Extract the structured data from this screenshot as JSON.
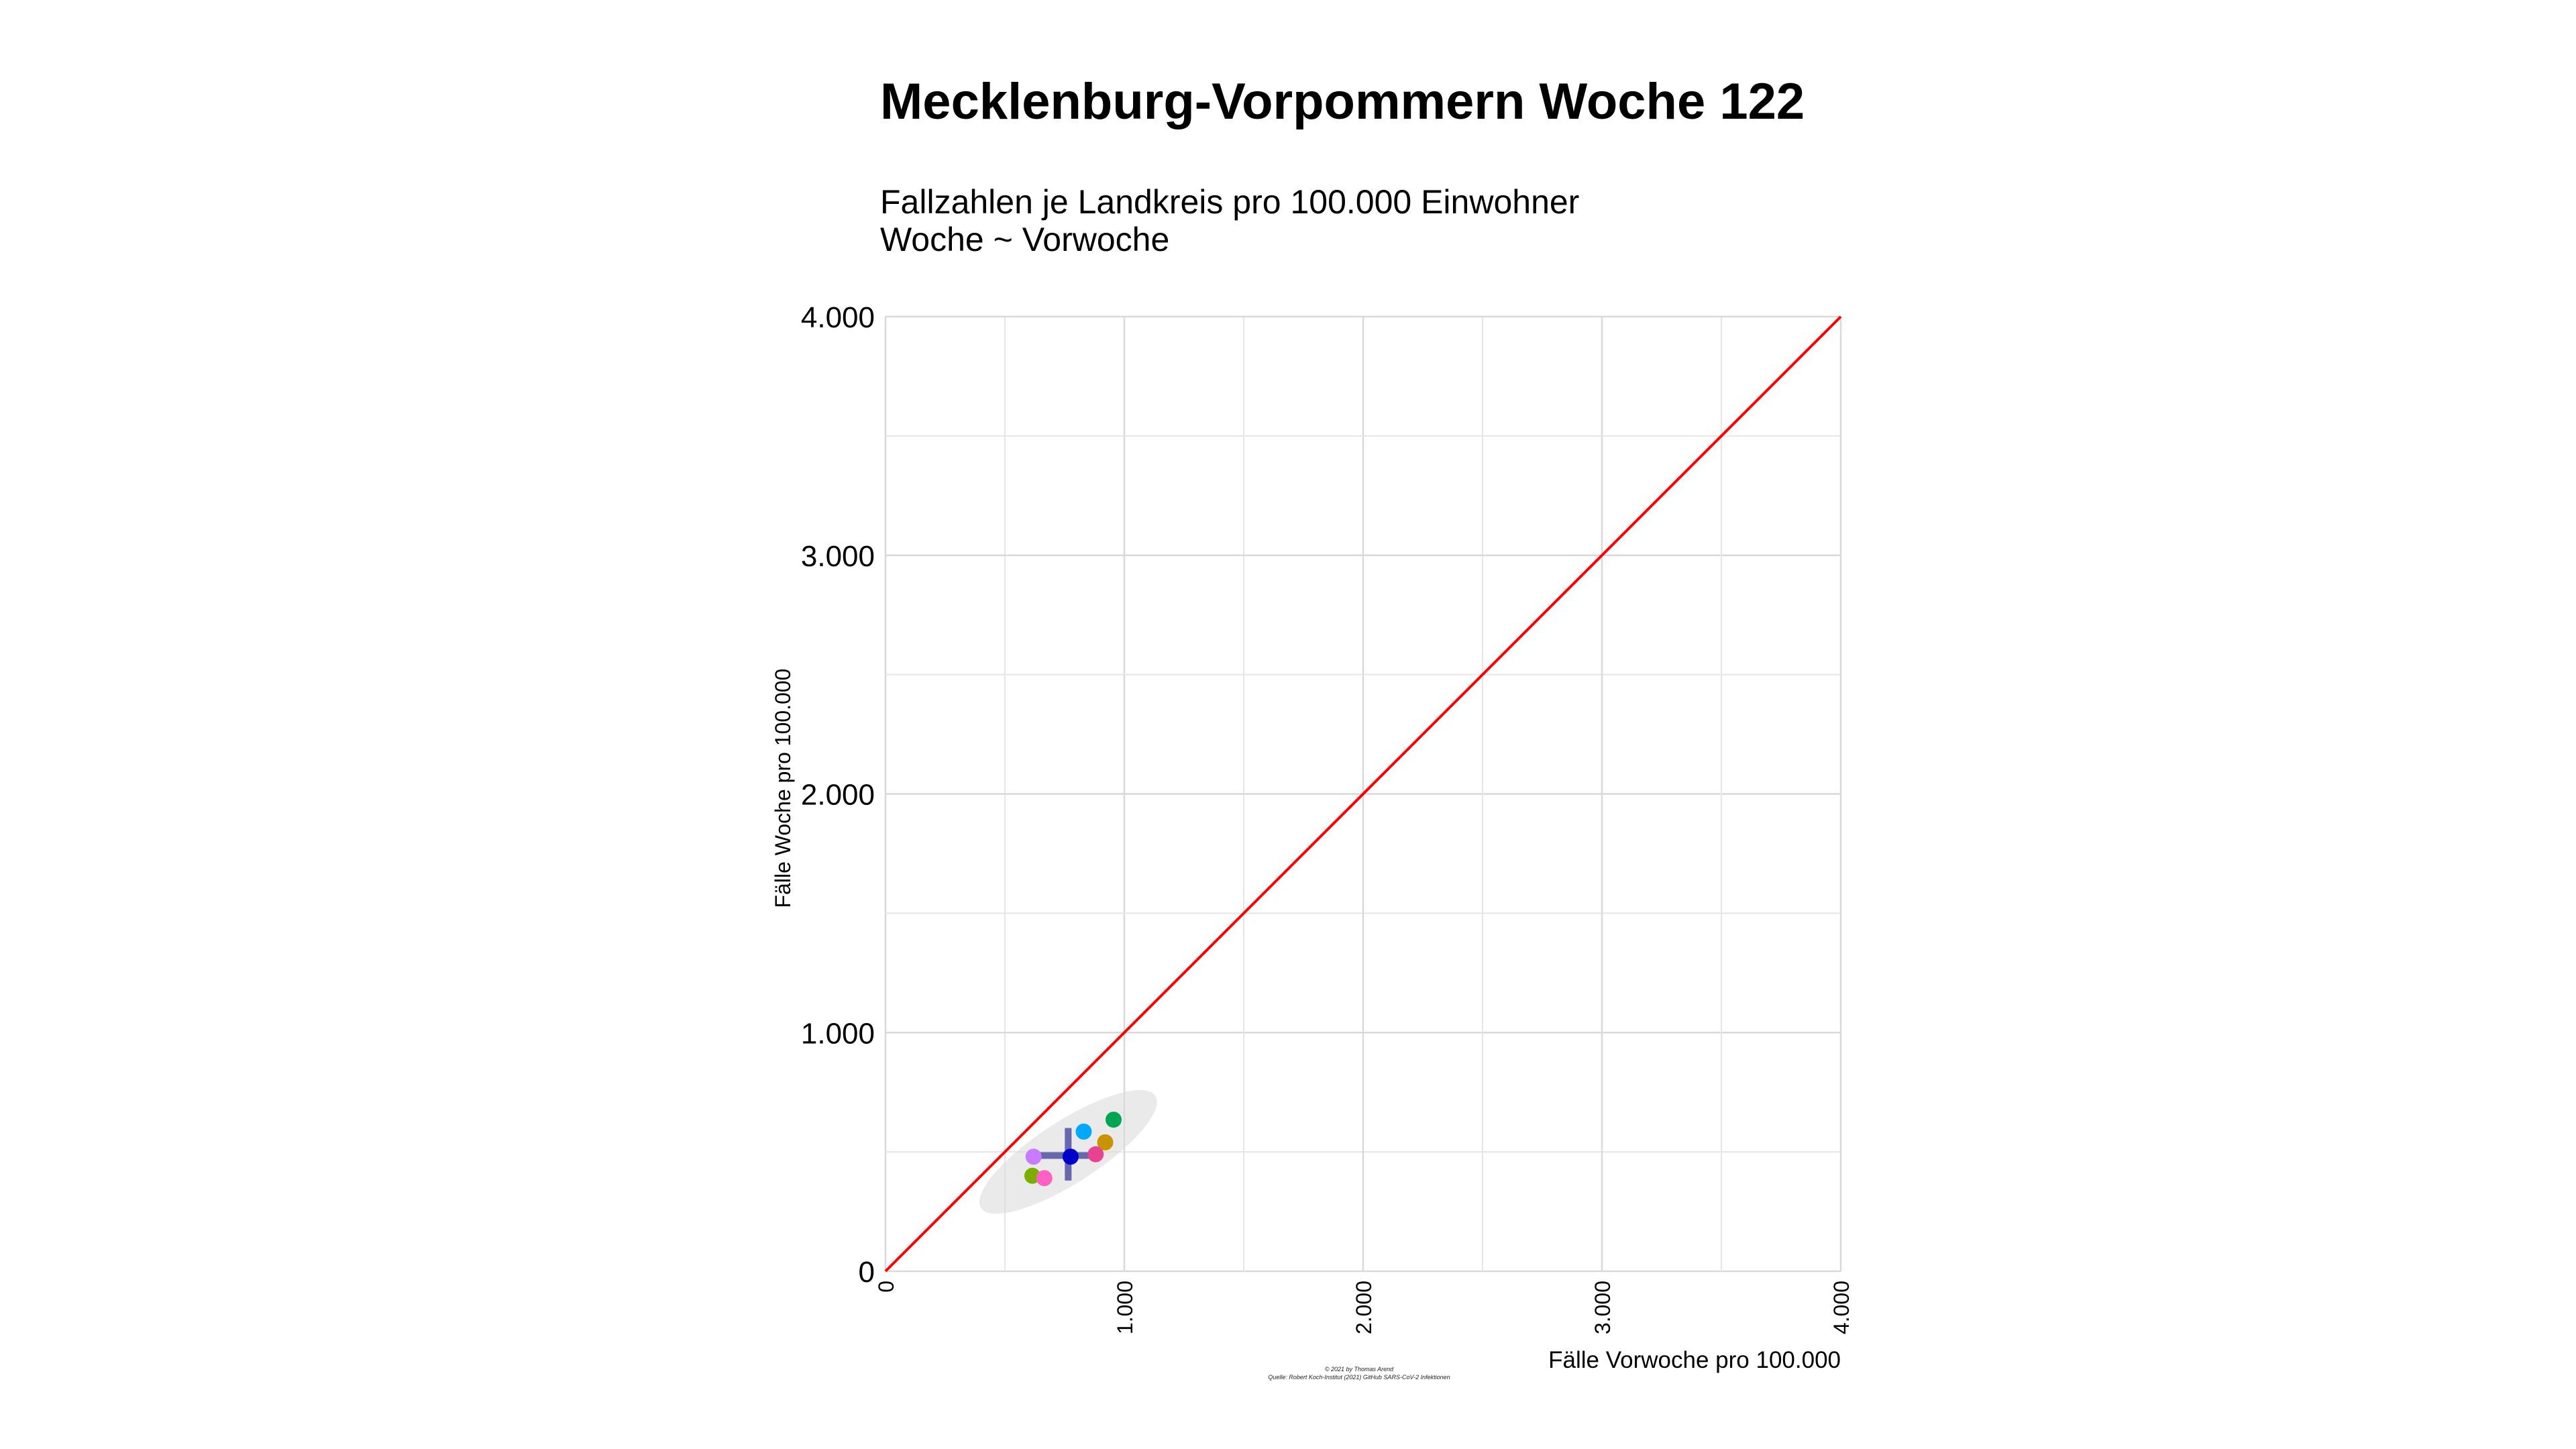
{
  "chart_data": {
    "type": "scatter",
    "title": "Mecklenburg-Vorpommern Woche 122",
    "subtitle_lines": [
      "Fallzahlen je Landkreis pro 100.000 Einwohner",
      "Woche ~ Vorwoche"
    ],
    "xlabel": "Fälle Vorwoche pro 100.000",
    "ylabel": "Fälle Woche pro 100.000",
    "xlim": [
      0,
      4000
    ],
    "ylim": [
      0,
      4000
    ],
    "x_ticks": [
      0,
      1000,
      2000,
      3000,
      4000
    ],
    "x_tick_labels": [
      "0",
      "1.000",
      "2.000",
      "3.000",
      "4.000"
    ],
    "y_ticks": [
      0,
      1000,
      2000,
      3000,
      4000
    ],
    "y_tick_labels": [
      "0",
      "1.000",
      "2.000",
      "3.000",
      "4.000"
    ],
    "grid": true,
    "reference_line": {
      "type": "identity",
      "color": "#ff0000"
    },
    "points": [
      {
        "x": 955,
        "y": 635,
        "color": "#00a651"
      },
      {
        "x": 830,
        "y": 585,
        "color": "#00a9ff"
      },
      {
        "x": 920,
        "y": 540,
        "color": "#c99300"
      },
      {
        "x": 880,
        "y": 490,
        "color": "#e84393"
      },
      {
        "x": 620,
        "y": 480,
        "color": "#c77cff"
      },
      {
        "x": 775,
        "y": 480,
        "color": "#0000cd"
      },
      {
        "x": 615,
        "y": 400,
        "color": "#7cae00"
      },
      {
        "x": 665,
        "y": 390,
        "color": "#ff61c3"
      }
    ],
    "mean_cross": {
      "x": 765,
      "y": 485,
      "x_range": [
        635,
        890
      ],
      "y_range": [
        380,
        600
      ],
      "color": "#3b3b9a"
    },
    "ellipse": {
      "cx": 765,
      "cy": 500,
      "x_extent": [
        410,
        1140
      ],
      "y_extent": [
        260,
        730
      ],
      "color": "#d9d9d9"
    },
    "credit_lines": [
      "© 2021 by Thomas Arend",
      "Quelle: Robert Koch-Institut (2021) GitHub SARS-CoV-2 Infektionen"
    ]
  }
}
